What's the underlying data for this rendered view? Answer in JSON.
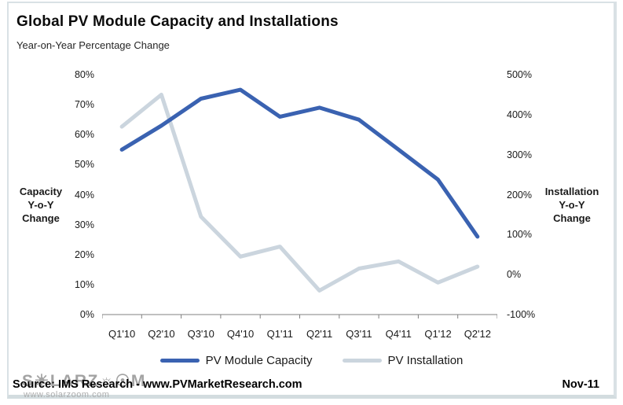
{
  "header": {
    "title": "Global PV Module Capacity and Installations",
    "subtitle": "Year-on-Year Percentage Change"
  },
  "chart_data": {
    "type": "line",
    "title": "Global PV Module Capacity and Installations",
    "subtitle": "Year-on-Year Percentage Change",
    "categories": [
      "Q1'10",
      "Q2'10",
      "Q3'10",
      "Q4'10",
      "Q1'11",
      "Q2'11",
      "Q3'11",
      "Q4'11",
      "Q1'12",
      "Q2'12"
    ],
    "series": [
      {
        "name": "PV Module Capacity",
        "axis": "left",
        "color": "#3A62B1",
        "values": [
          55,
          63,
          72,
          75,
          66,
          69,
          65,
          55,
          45,
          26
        ]
      },
      {
        "name": "PV Installation",
        "axis": "right",
        "color": "#CBD5DE",
        "values": [
          370,
          450,
          145,
          45,
          70,
          -40,
          15,
          33,
          -20,
          20
        ]
      }
    ],
    "left_axis": {
      "title": "Capacity\nY-o-Y\nChange",
      "min": 0,
      "max": 80,
      "step": 10,
      "unit": "%"
    },
    "right_axis": {
      "title": "Installation\nY-o-Y\nChange",
      "min": -100,
      "max": 500,
      "step": 100,
      "unit": "%"
    },
    "grid": false,
    "legend_position": "bottom",
    "axis_line_color": "#808080"
  },
  "footer": {
    "source": "Source: IMS Research - www.PVMarketResearch.com",
    "date": "Nov-11"
  },
  "watermark": {
    "text": "S☀LARZ☼☉M",
    "url": "www.solarzoom.com"
  }
}
